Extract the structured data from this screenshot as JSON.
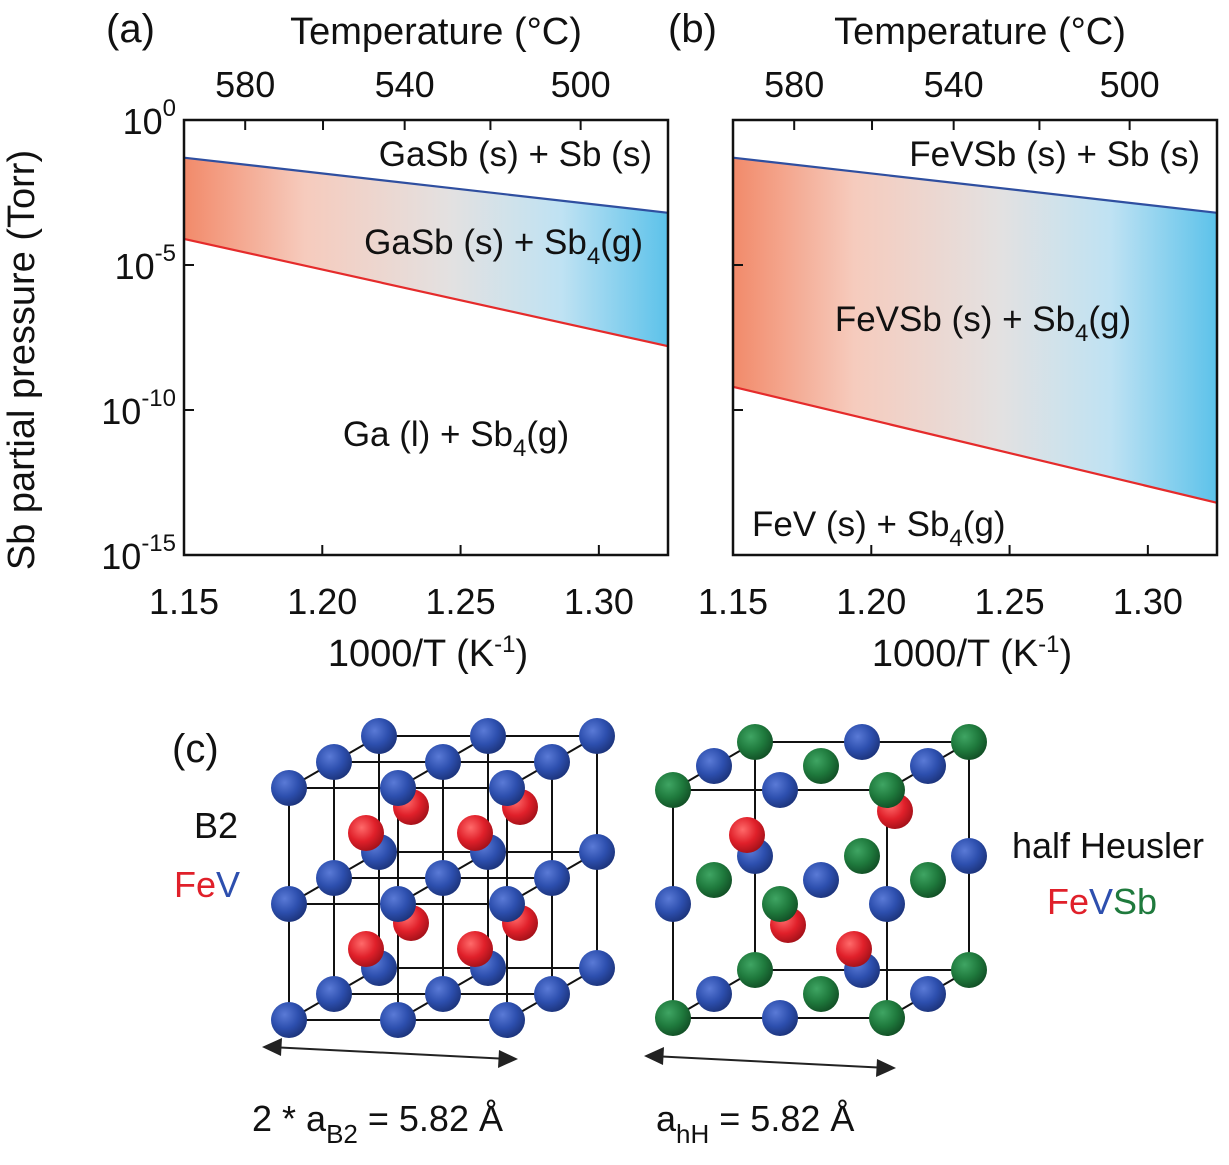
{
  "figure": {
    "panel_labels": [
      "(a)",
      "(b)",
      "(c)"
    ],
    "y_axis_title": "Sb partial pressure (Torr)",
    "colors": {
      "lower_line": "#e52b2b",
      "upper_line": "#2f4fa0",
      "band_hot": "#f28a6a",
      "band_mid": "#e3e1e1",
      "band_cold": "#5cc2ea",
      "atom_fe": "#e0202a",
      "atom_v": "#2d4fae",
      "atom_sb": "#1f7a3d"
    }
  },
  "chart_data": [
    {
      "panel": "(a)",
      "type": "area",
      "xlabel": "1000/T (K",
      "xlabel_sup": "-1",
      "xlabel_end": ")",
      "x_ticks": [
        "1.15",
        "1.20",
        "1.25",
        "1.30"
      ],
      "x_tick_values": [
        1.15,
        1.2,
        1.25,
        1.3
      ],
      "xlim": [
        1.15,
        1.325
      ],
      "top_axis_label": "Temperature (°C)",
      "top_ticks": [
        "580",
        "540",
        "500"
      ],
      "top_tick_values": [
        580,
        540,
        500
      ],
      "ylabel": "Sb partial pressure (Torr)",
      "y_scale": "log",
      "ylim": [
        1e-15,
        1
      ],
      "y_tick_exponents": [
        "0",
        "-5",
        "-10",
        "-15"
      ],
      "y_tick_exp_values": [
        0,
        -5,
        -10,
        -15
      ],
      "series": [
        {
          "x": [
            1.15,
            1.325
          ],
          "log10_y": [
            -1.3,
            -3.2
          ]
        },
        {
          "x": [
            1.15,
            1.325
          ],
          "log10_y": [
            -4.1,
            -7.8
          ]
        }
      ],
      "regions": [
        {
          "text": "GaSb (s) + Sb (s)",
          "sub": ""
        },
        {
          "text": "GaSb (s) + Sb",
          "sub": "4",
          "after": "(g)"
        },
        {
          "text": "Ga (l) + Sb",
          "sub": "4",
          "after": "(g)"
        }
      ]
    },
    {
      "panel": "(b)",
      "type": "area",
      "xlabel": "1000/T (K",
      "xlabel_sup": "-1",
      "xlabel_end": ")",
      "x_ticks": [
        "1.15",
        "1.20",
        "1.25",
        "1.30"
      ],
      "x_tick_values": [
        1.15,
        1.2,
        1.25,
        1.3
      ],
      "xlim": [
        1.15,
        1.325
      ],
      "top_axis_label": "Temperature (°C)",
      "top_ticks": [
        "580",
        "540",
        "500"
      ],
      "top_tick_values": [
        580,
        540,
        500
      ],
      "ylabel": "Sb partial pressure (Torr)",
      "y_scale": "log",
      "ylim": [
        1e-15,
        1
      ],
      "y_tick_exponents": [
        "0",
        "-5",
        "-10",
        "-15"
      ],
      "y_tick_exp_values": [
        0,
        -5,
        -10,
        -15
      ],
      "series": [
        {
          "x": [
            1.15,
            1.325
          ],
          "log10_y": [
            -1.3,
            -3.2
          ]
        },
        {
          "x": [
            1.15,
            1.325
          ],
          "log10_y": [
            -9.2,
            -13.2
          ]
        }
      ],
      "regions": [
        {
          "text": "FeVSb (s) + Sb (s)",
          "sub": ""
        },
        {
          "text": "FeVSb (s) + Sb",
          "sub": "4",
          "after": "(g)"
        },
        {
          "text": "FeV (s) + Sb",
          "sub": "4",
          "after": "(g)"
        }
      ]
    }
  ],
  "structures": {
    "b2": {
      "name": "B2",
      "formula_parts": [
        {
          "text": "Fe",
          "color_key": "atom_fe"
        },
        {
          "text": "V",
          "color_key": "atom_v"
        }
      ],
      "dimension_main": "2 * a",
      "dimension_sub": "B2",
      "dimension_value": " = 5.82 Å"
    },
    "half_heusler": {
      "name": "half Heusler",
      "formula_parts": [
        {
          "text": "Fe",
          "color_key": "atom_fe"
        },
        {
          "text": "V",
          "color_key": "atom_v"
        },
        {
          "text": "Sb",
          "color_key": "atom_sb"
        }
      ],
      "dimension_main": "a",
      "dimension_sub": "hH",
      "dimension_value": " = 5.82 Å"
    }
  }
}
